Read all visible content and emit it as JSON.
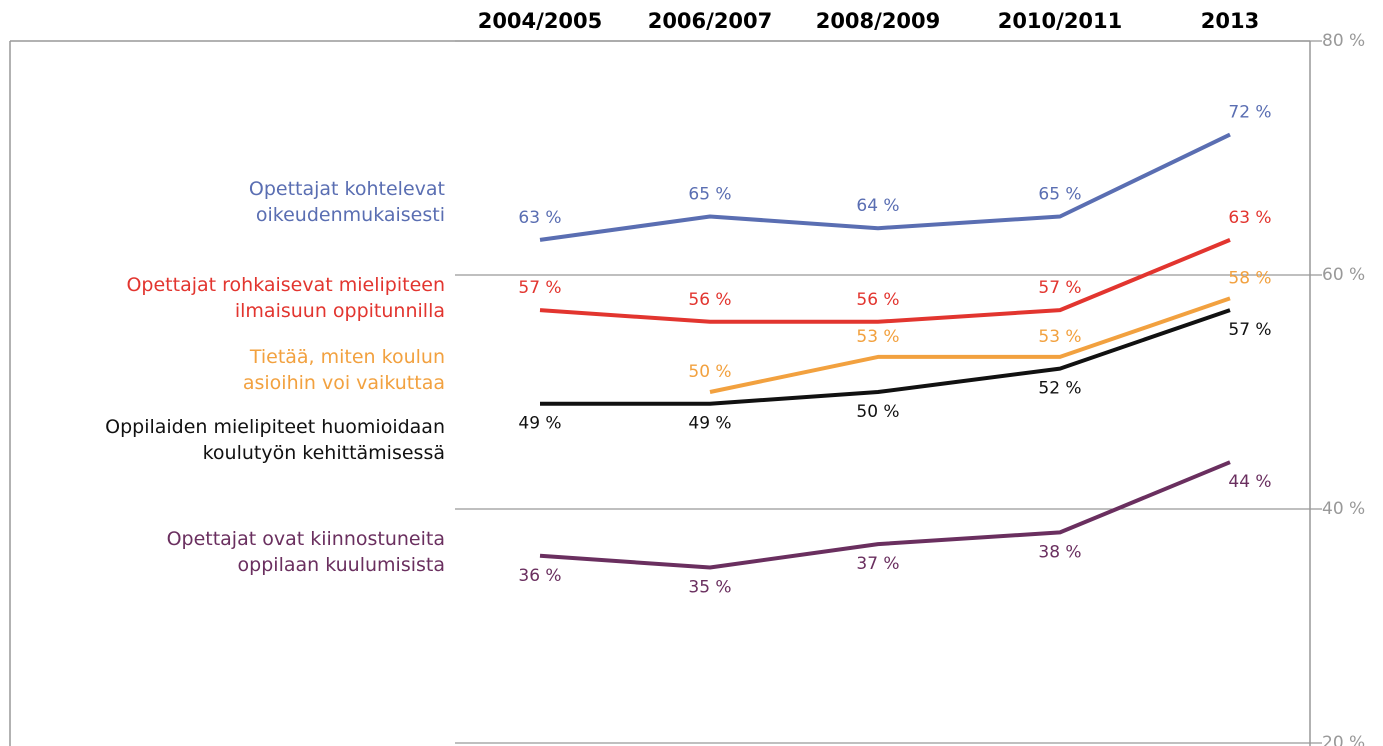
{
  "chart_data": {
    "type": "line",
    "categories": [
      "2004/2005",
      "2006/2007",
      "2008/2009",
      "2010/2011",
      "2013"
    ],
    "ylim": [
      20,
      80
    ],
    "yticks": [
      {
        "value": 20,
        "label": "20 %"
      },
      {
        "value": 40,
        "label": "40 %"
      },
      {
        "value": 60,
        "label": "60 %"
      },
      {
        "value": 80,
        "label": "80 %"
      }
    ],
    "grid": true,
    "series": [
      {
        "name": "Opettajat kohtelevat\noikeudenmukaisesti",
        "color": "#5a6eb2",
        "values": [
          63,
          65,
          64,
          65,
          72
        ],
        "value_labels": [
          "63 %",
          "65 %",
          "64 %",
          "65 %",
          "72 %"
        ]
      },
      {
        "name": "Opettajat rohkaisevat mielipiteen\nilmaisuun oppitunnilla",
        "color": "#e2352f",
        "values": [
          57,
          56,
          56,
          57,
          63
        ],
        "value_labels": [
          "57 %",
          "56 %",
          "56 %",
          "57 %",
          "63 %"
        ]
      },
      {
        "name": "Tietää, miten koulun\nasioihin voi vaikuttaa",
        "color": "#f2a13f",
        "values": [
          null,
          50,
          53,
          53,
          58
        ],
        "value_labels": [
          null,
          "50 %",
          "53 %",
          "53 %",
          "58 %"
        ]
      },
      {
        "name": "Oppilaiden mielipiteet huomioidaan\nkoulutyön kehittämisessä",
        "color": "#111111",
        "values": [
          49,
          49,
          50,
          52,
          57
        ],
        "value_labels": [
          "49 %",
          "49 %",
          "50 %",
          "52 %",
          "57 %"
        ]
      },
      {
        "name": "Opettajat ovat kiinnostuneita\noppilaan kuulumisista",
        "color": "#6a2f5f",
        "values": [
          36,
          35,
          37,
          38,
          44
        ],
        "value_labels": [
          "36 %",
          "35 %",
          "37 %",
          "38 %",
          "44 %"
        ]
      }
    ]
  }
}
